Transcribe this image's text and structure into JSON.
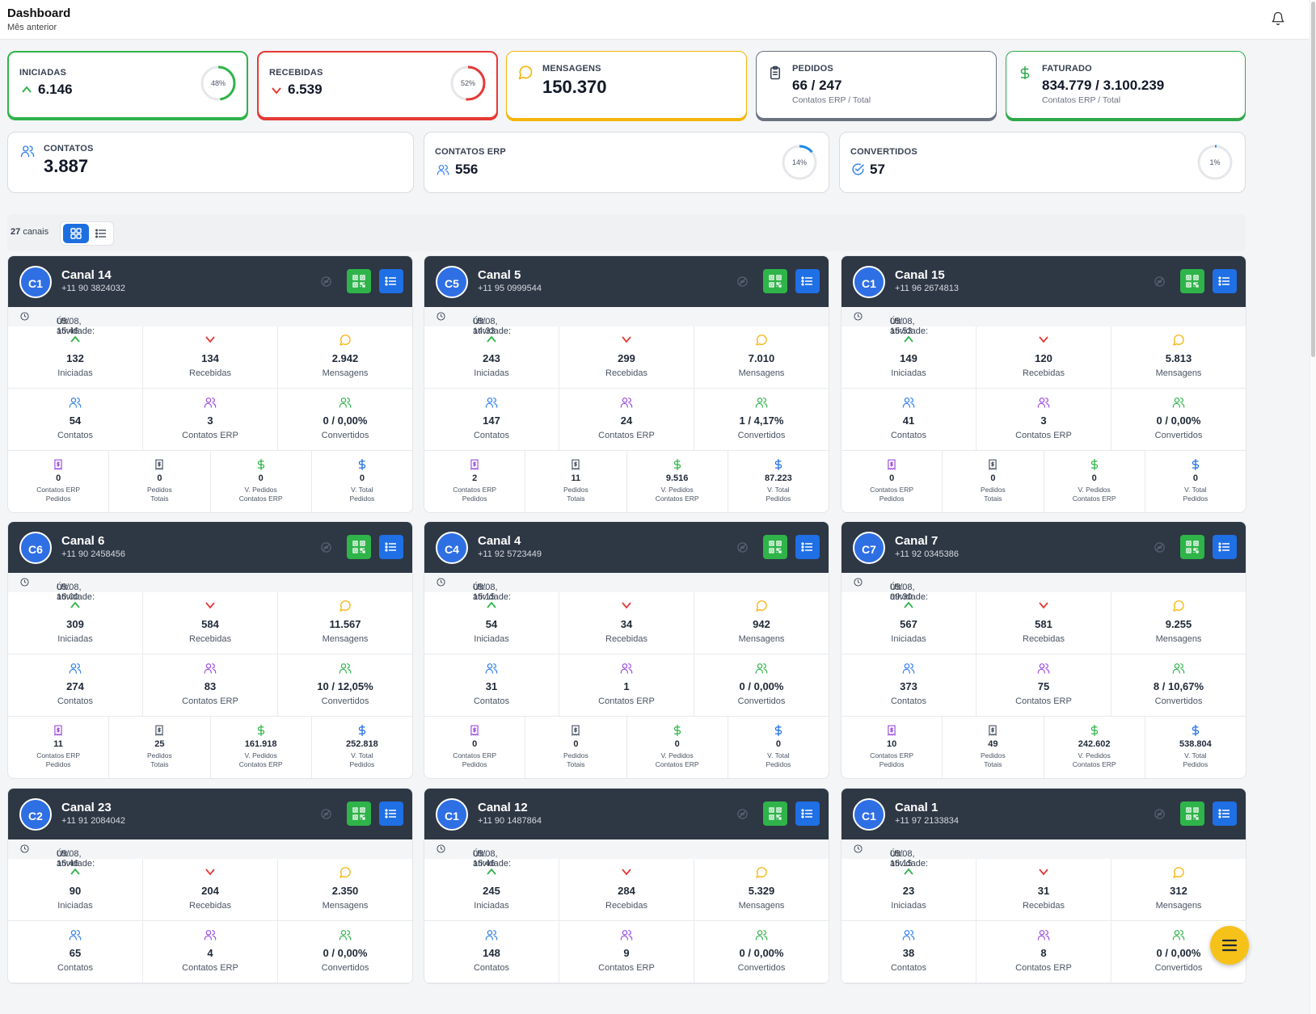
{
  "header": {
    "title": "Dashboard",
    "subtitle": "Mês anterior",
    "bell_icon": "bell-icon"
  },
  "kpis": {
    "iniciadas": {
      "label": "INICIADAS",
      "value": "6.146",
      "percent": "48%",
      "percent_value": 48,
      "color": "#2fb44a"
    },
    "recebidas": {
      "label": "RECEBIDAS",
      "value": "6.539",
      "percent": "52%",
      "percent_value": 52,
      "color": "#e53935"
    },
    "mensagens": {
      "label": "MENSAGENS",
      "value": "150.370",
      "color": "#f5b50a"
    },
    "pedidos": {
      "label": "PEDIDOS",
      "value": "66 / 247",
      "sub": "Contatos ERP / Total",
      "color": "#6b7280"
    },
    "faturado": {
      "label": "FATURADO",
      "value": "834.779 / 3.100.239",
      "sub": "Contatos ERP / Total",
      "color": "#2fa84a"
    },
    "contatos": {
      "label": "CONTATOS",
      "value": "3.887"
    },
    "contatos_erp": {
      "label": "CONTATOS ERP",
      "value": "556",
      "percent": "14%",
      "percent_value": 14
    },
    "convertidos": {
      "label": "CONVERTIDOS",
      "value": "57",
      "percent": "1%",
      "percent_value": 1
    }
  },
  "toolbar": {
    "count": "27",
    "count_label": "canais"
  },
  "labels": {
    "iniciadas": "Iniciadas",
    "recebidas": "Recebidas",
    "mensagens": "Mensagens",
    "contatos": "Contatos",
    "contatos_erp": "Contatos ERP",
    "convertidos": "Convertidos",
    "erp_pedidos_1": "Contatos ERP",
    "erp_pedidos_2": "Pedidos",
    "pedidos_totais_1": "Pedidos",
    "pedidos_totais_2": "Totais",
    "v_pedidos_1": "V. Pedidos",
    "v_pedidos_2": "Contatos ERP",
    "v_total_1": "V. Total",
    "v_total_2": "Pedidos",
    "activity_prefix": "Últ. atividade:"
  },
  "channels": [
    {
      "initials": "C1",
      "name": "Canal 14",
      "phone": "+11 90 3824032",
      "activity": "05/08, 15:46",
      "iniciadas": "132",
      "recebidas": "134",
      "mensagens": "2.942",
      "contatos": "54",
      "contatos_erp": "3",
      "convertidos": "0 / 0,00%",
      "erp_pedidos": "0",
      "pedidos_totais": "0",
      "v_pedidos": "0",
      "v_total": "0"
    },
    {
      "initials": "C5",
      "name": "Canal 5",
      "phone": "+11 95 0999544",
      "activity": "05/08, 14:33",
      "iniciadas": "243",
      "recebidas": "299",
      "mensagens": "7.010",
      "contatos": "147",
      "contatos_erp": "24",
      "convertidos": "1 / 4,17%",
      "erp_pedidos": "2",
      "pedidos_totais": "11",
      "v_pedidos": "9.516",
      "v_total": "87.223"
    },
    {
      "initials": "C1",
      "name": "Canal 15",
      "phone": "+11 96 2674813",
      "activity": "05/08, 15:53",
      "iniciadas": "149",
      "recebidas": "120",
      "mensagens": "5.813",
      "contatos": "41",
      "contatos_erp": "3",
      "convertidos": "0 / 0,00%",
      "erp_pedidos": "0",
      "pedidos_totais": "0",
      "v_pedidos": "0",
      "v_total": "0"
    },
    {
      "initials": "C6",
      "name": "Canal 6",
      "phone": "+11 90 2458456",
      "activity": "05/08, 16:00",
      "iniciadas": "309",
      "recebidas": "584",
      "mensagens": "11.567",
      "contatos": "274",
      "contatos_erp": "83",
      "convertidos": "10 / 12,05%",
      "erp_pedidos": "11",
      "pedidos_totais": "25",
      "v_pedidos": "161.918",
      "v_total": "252.818"
    },
    {
      "initials": "C4",
      "name": "Canal 4",
      "phone": "+11 92 5723449",
      "activity": "05/08, 15:15",
      "iniciadas": "54",
      "recebidas": "34",
      "mensagens": "942",
      "contatos": "31",
      "contatos_erp": "1",
      "convertidos": "0 / 0,00%",
      "erp_pedidos": "0",
      "pedidos_totais": "0",
      "v_pedidos": "0",
      "v_total": "0"
    },
    {
      "initials": "C7",
      "name": "Canal 7",
      "phone": "+11 92 0345386",
      "activity": "05/08, 09:30",
      "iniciadas": "567",
      "recebidas": "581",
      "mensagens": "9.255",
      "contatos": "373",
      "contatos_erp": "75",
      "convertidos": "8 / 10,67%",
      "erp_pedidos": "10",
      "pedidos_totais": "49",
      "v_pedidos": "242.602",
      "v_total": "538.804"
    },
    {
      "initials": "C2",
      "name": "Canal 23",
      "phone": "+11 91 2084042",
      "activity": "05/08, 15:46",
      "iniciadas": "90",
      "recebidas": "204",
      "mensagens": "2.350",
      "contatos": "65",
      "contatos_erp": "4",
      "convertidos": "0 / 0,00%"
    },
    {
      "initials": "C1",
      "name": "Canal 12",
      "phone": "+11 90 1487864",
      "activity": "05/08, 15:46",
      "iniciadas": "245",
      "recebidas": "284",
      "mensagens": "5.329",
      "contatos": "148",
      "contatos_erp": "9",
      "convertidos": "0 / 0,00%"
    },
    {
      "initials": "C1",
      "name": "Canal 1",
      "phone": "+11 97 2133834",
      "activity": "05/08, 15:15",
      "iniciadas": "23",
      "recebidas": "31",
      "mensagens": "312",
      "contatos": "38",
      "contatos_erp": "8",
      "convertidos": "0 / 0,00%"
    }
  ],
  "colors": {
    "green": "#2fb44a",
    "red": "#e53935",
    "yellow": "#f5b50a",
    "blue": "#2f80ed",
    "purple": "#9b4de0",
    "dark": "#2e3744",
    "fab": "#f6c21a"
  }
}
